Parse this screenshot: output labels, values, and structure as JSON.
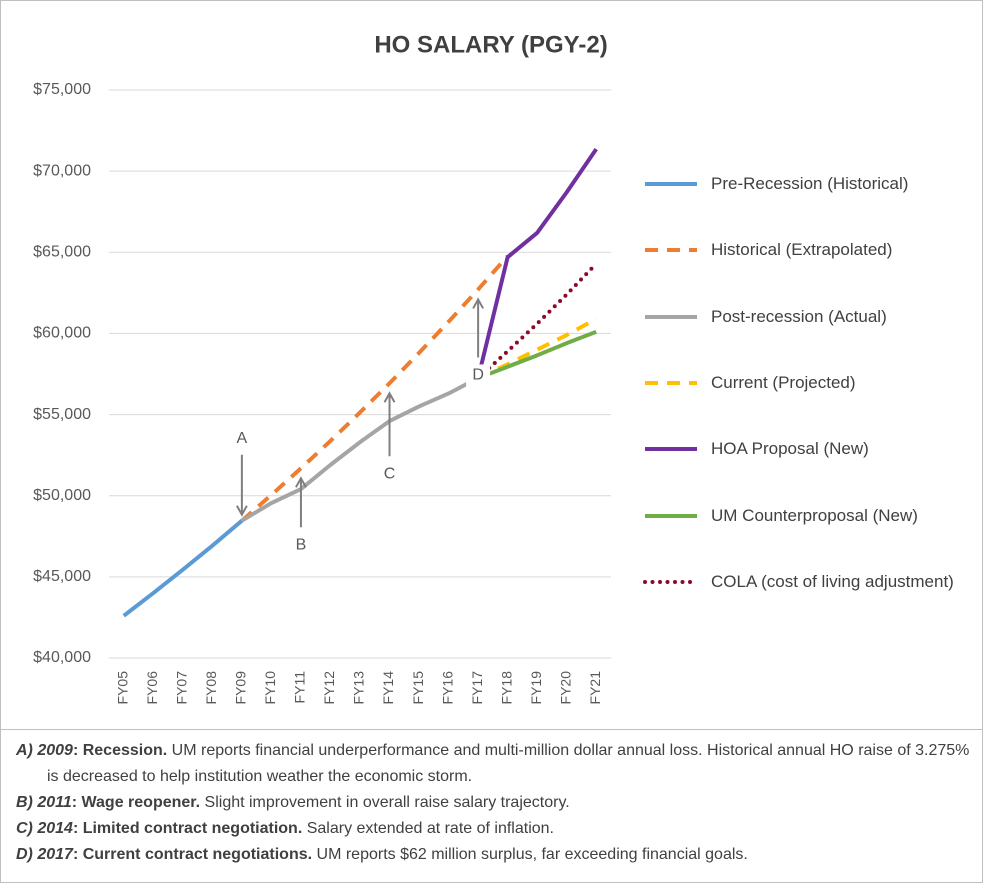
{
  "chart_data": {
    "type": "line",
    "title": "HO SALARY (PGY-2)",
    "categories": [
      "FY05",
      "FY06",
      "FY07",
      "FY08",
      "FY09",
      "FY10",
      "FY11",
      "FY12",
      "FY13",
      "FY14",
      "FY15",
      "FY16",
      "FY17",
      "FY18",
      "FY19",
      "FY20",
      "FY21"
    ],
    "ylim": [
      40000,
      75000
    ],
    "yticks": [
      {
        "value": 40000,
        "label": "$40,000"
      },
      {
        "value": 45000,
        "label": "$45,000"
      },
      {
        "value": 50000,
        "label": "$50,000"
      },
      {
        "value": 55000,
        "label": "$55,000"
      },
      {
        "value": 60000,
        "label": "$60,000"
      },
      {
        "value": 65000,
        "label": "$65,000"
      },
      {
        "value": 70000,
        "label": "$70,000"
      },
      {
        "value": 75000,
        "label": "$75,000"
      }
    ],
    "grid": true,
    "legend": "right",
    "series": [
      {
        "name": "Pre-Recession (Historical)",
        "color": "#5b9bd5",
        "style": "solid",
        "values": [
          42600,
          44000,
          45440,
          46920,
          48460,
          null,
          null,
          null,
          null,
          null,
          null,
          null,
          null,
          null,
          null,
          null,
          null
        ]
      },
      {
        "name": "Historical (Extrapolated)",
        "color": "#ed7d31",
        "style": "dashed",
        "values": [
          null,
          null,
          null,
          null,
          48460,
          50050,
          51690,
          53380,
          55130,
          56930,
          58800,
          60720,
          62710,
          64770,
          null,
          null,
          null
        ]
      },
      {
        "name": "Post-recession (Actual)",
        "color": "#a5a5a5",
        "style": "solid",
        "values": [
          null,
          null,
          null,
          null,
          48460,
          49550,
          50410,
          51900,
          53300,
          54600,
          55500,
          56300,
          57250,
          null,
          null,
          null,
          null
        ]
      },
      {
        "name": "Current (Projected)",
        "color": "#ffc000",
        "style": "dashed",
        "values": [
          null,
          null,
          null,
          null,
          null,
          null,
          null,
          null,
          null,
          null,
          null,
          null,
          57250,
          58100,
          59000,
          59900,
          60900
        ]
      },
      {
        "name": "HOA Proposal (New)",
        "color": "#7030a0",
        "style": "solid",
        "values": [
          null,
          null,
          null,
          null,
          null,
          null,
          null,
          null,
          null,
          null,
          null,
          null,
          57250,
          64700,
          66200,
          68700,
          71360
        ]
      },
      {
        "name": "UM Counterproposal (New)",
        "color": "#70ad47",
        "style": "solid",
        "values": [
          null,
          null,
          null,
          null,
          null,
          null,
          null,
          null,
          null,
          null,
          null,
          null,
          57250,
          57950,
          58650,
          59400,
          60100
        ]
      },
      {
        "name": "COLA (cost of living adjustment)",
        "color": "#8b0a2a",
        "style": "dotted",
        "values": [
          null,
          null,
          null,
          null,
          null,
          null,
          null,
          null,
          null,
          null,
          null,
          null,
          57250,
          58900,
          60600,
          62400,
          64300
        ]
      }
    ],
    "annotations": [
      {
        "label": "A",
        "at": "FY09",
        "side": "above"
      },
      {
        "label": "B",
        "at": "FY11",
        "side": "below"
      },
      {
        "label": "C",
        "at": "FY14",
        "side": "below"
      },
      {
        "label": "D",
        "at": "FY17",
        "side": "below"
      }
    ]
  },
  "notes": [
    {
      "marker": "A)",
      "year": "2009",
      "heading": ": Recession.",
      "text": "UM reports financial underperformance and multi-million dollar annual loss. Historical annual HO raise of 3.275% is decreased to help institution weather the economic storm."
    },
    {
      "marker": "B)",
      "year": "2011",
      "heading": ": Wage reopener.",
      "text": "Slight improvement in overall raise salary trajectory."
    },
    {
      "marker": "C)",
      "year": "2014",
      "heading": ": Limited contract negotiation.",
      "text": "Salary extended at rate of inflation."
    },
    {
      "marker": "D)",
      "year": "2017",
      "heading": ": Current contract negotiations.",
      "text": "UM reports $62 million surplus, far exceeding financial goals."
    }
  ]
}
